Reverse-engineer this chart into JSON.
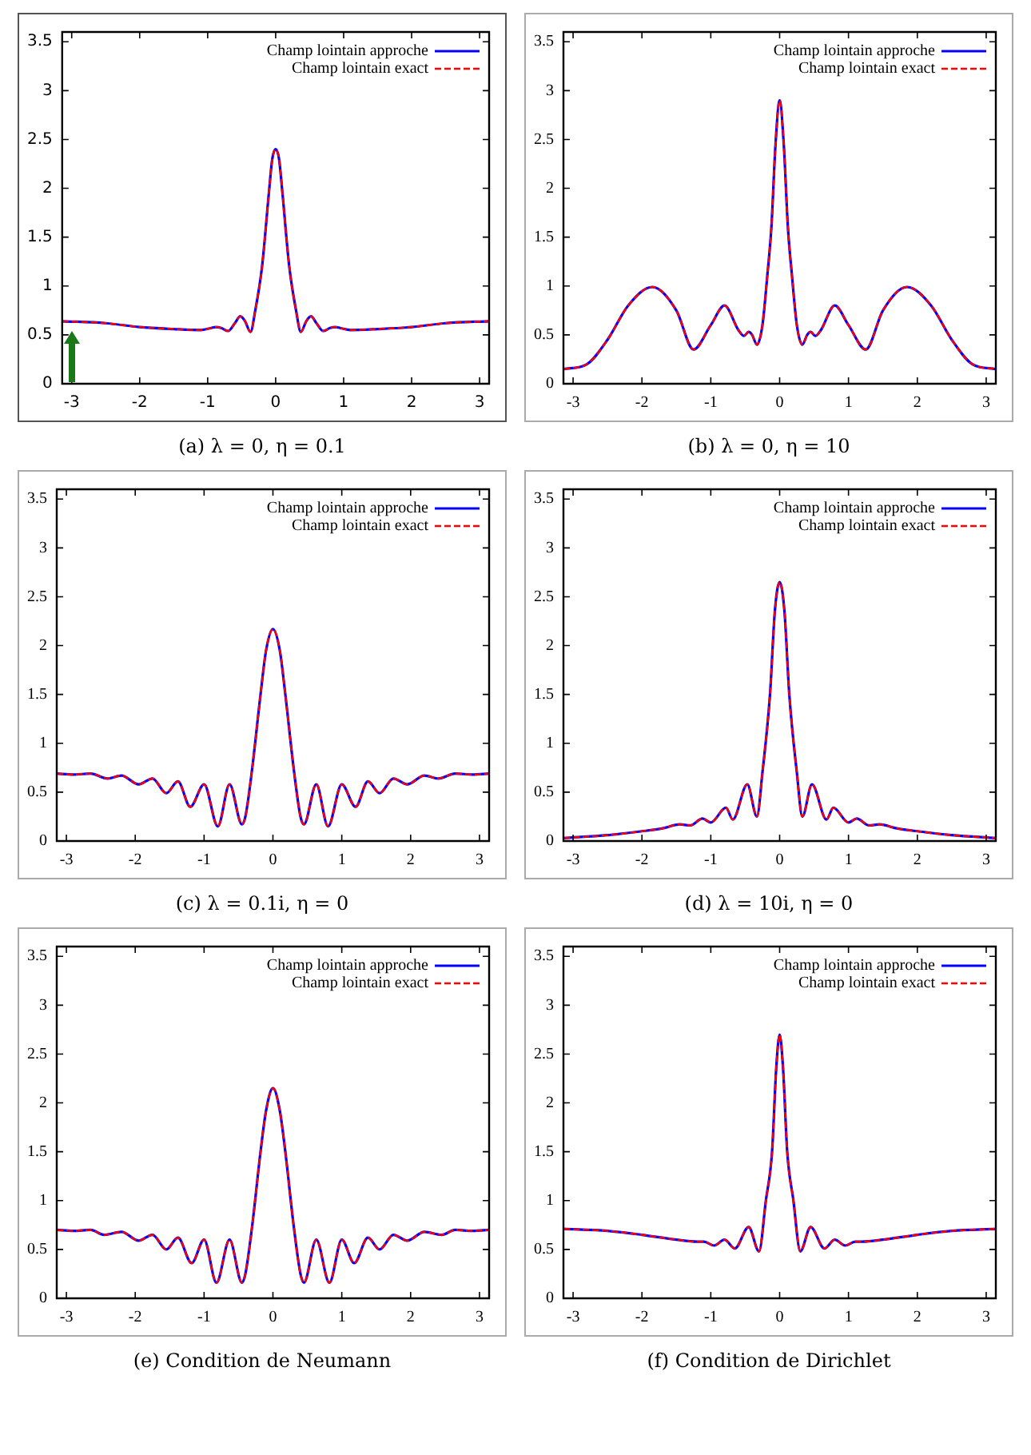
{
  "chart_data": [
    {
      "type": "line",
      "title": "(a) λ = 0, η = 0.1",
      "legend": "top right",
      "marker": "none",
      "xlim": [
        -3.14,
        3.14
      ],
      "ylim": [
        0,
        3.6
      ],
      "xticks": [
        -3,
        -2,
        -1,
        0,
        1,
        2,
        3
      ],
      "yticks": [
        0,
        0.5,
        1,
        1.5,
        2,
        2.5,
        3,
        3.5
      ],
      "x": [
        -3.14,
        -2.5,
        -2,
        -1.5,
        -1.1,
        -0.95,
        -0.88,
        -0.8,
        -0.7,
        -0.6,
        -0.52,
        -0.45,
        -0.37,
        -0.3,
        -0.2,
        -0.1,
        -0.05,
        0,
        0.05,
        0.1,
        0.2,
        0.3,
        0.37,
        0.45,
        0.52,
        0.6,
        0.7,
        0.8,
        0.88,
        0.95,
        1.1,
        1.5,
        2,
        2.5,
        3.14
      ],
      "series": [
        {
          "name": "Champ lointain approche",
          "color": "#0000ff",
          "line_style": "solid",
          "values": [
            0.64,
            0.62,
            0.58,
            0.56,
            0.55,
            0.57,
            0.58,
            0.57,
            0.54,
            0.62,
            0.69,
            0.64,
            0.53,
            0.75,
            1.2,
            1.95,
            2.3,
            2.4,
            2.3,
            1.95,
            1.2,
            0.75,
            0.53,
            0.64,
            0.69,
            0.62,
            0.54,
            0.57,
            0.58,
            0.57,
            0.55,
            0.56,
            0.58,
            0.62,
            0.64
          ]
        },
        {
          "name": "Champ lointain exact",
          "color": "#ff0000",
          "line_style": "dashed",
          "values": [
            0.64,
            0.62,
            0.58,
            0.56,
            0.55,
            0.57,
            0.58,
            0.57,
            0.54,
            0.62,
            0.69,
            0.64,
            0.53,
            0.75,
            1.2,
            1.95,
            2.3,
            2.4,
            2.3,
            1.95,
            1.2,
            0.75,
            0.53,
            0.64,
            0.69,
            0.62,
            0.54,
            0.57,
            0.58,
            0.57,
            0.55,
            0.56,
            0.58,
            0.62,
            0.64
          ]
        }
      ]
    },
    {
      "type": "line",
      "title": "(b) λ = 0, η = 10",
      "legend": "top right",
      "marker": "none",
      "xlim": [
        -3.14,
        3.14
      ],
      "ylim": [
        0,
        3.6
      ],
      "xticks": [
        -3,
        -2,
        -1,
        0,
        1,
        2,
        3
      ],
      "yticks": [
        0,
        0.5,
        1,
        1.5,
        2,
        2.5,
        3,
        3.5
      ],
      "x": [
        -3.14,
        -2.8,
        -2.5,
        -2.2,
        -1.85,
        -1.5,
        -1.25,
        -1,
        -0.8,
        -0.6,
        -0.52,
        -0.45,
        -0.4,
        -0.33,
        -0.25,
        -0.18,
        -0.12,
        -0.06,
        0,
        0.06,
        0.12,
        0.18,
        0.25,
        0.33,
        0.4,
        0.45,
        0.52,
        0.6,
        0.8,
        1,
        1.25,
        1.5,
        1.85,
        2.2,
        2.5,
        2.8,
        3.14
      ],
      "series": [
        {
          "name": "Champ lointain approche",
          "color": "#0000ff",
          "line_style": "solid",
          "values": [
            0.15,
            0.2,
            0.45,
            0.8,
            0.99,
            0.75,
            0.35,
            0.6,
            0.8,
            0.55,
            0.49,
            0.53,
            0.5,
            0.4,
            0.6,
            1.1,
            1.6,
            2.45,
            2.9,
            2.45,
            1.6,
            1.1,
            0.6,
            0.4,
            0.5,
            0.53,
            0.49,
            0.55,
            0.8,
            0.6,
            0.35,
            0.75,
            0.99,
            0.8,
            0.45,
            0.2,
            0.15
          ]
        },
        {
          "name": "Champ lointain exact",
          "color": "#ff0000",
          "line_style": "dashed",
          "values": [
            0.15,
            0.2,
            0.45,
            0.8,
            0.99,
            0.75,
            0.35,
            0.6,
            0.8,
            0.55,
            0.49,
            0.53,
            0.5,
            0.4,
            0.6,
            1.1,
            1.6,
            2.45,
            2.9,
            2.45,
            1.6,
            1.1,
            0.6,
            0.4,
            0.5,
            0.53,
            0.49,
            0.55,
            0.8,
            0.6,
            0.35,
            0.75,
            0.99,
            0.8,
            0.45,
            0.2,
            0.15
          ]
        }
      ]
    },
    {
      "type": "line",
      "title": "(c) λ = 0.1i, η = 0",
      "legend": "top right",
      "marker": "none",
      "xlim": [
        -3.14,
        3.14
      ],
      "ylim": [
        0,
        3.6
      ],
      "xticks": [
        -3,
        -2,
        -1,
        0,
        1,
        2,
        3
      ],
      "yticks": [
        0,
        0.5,
        1,
        1.5,
        2,
        2.5,
        3,
        3.5
      ],
      "x": [
        -3.14,
        -2.9,
        -2.65,
        -2.4,
        -2.2,
        -1.95,
        -1.75,
        -1.55,
        -1.38,
        -1.2,
        -1,
        -0.8,
        -0.63,
        -0.45,
        -0.4,
        -0.3,
        -0.18,
        -0.1,
        0,
        0.1,
        0.18,
        0.3,
        0.4,
        0.45,
        0.63,
        0.8,
        1,
        1.2,
        1.38,
        1.55,
        1.75,
        1.95,
        2.2,
        2.4,
        2.65,
        2.9,
        3.14
      ],
      "series": [
        {
          "name": "Champ lointain approche",
          "color": "#0000ff",
          "line_style": "solid",
          "values": [
            0.69,
            0.68,
            0.69,
            0.64,
            0.67,
            0.58,
            0.64,
            0.49,
            0.61,
            0.35,
            0.58,
            0.15,
            0.58,
            0.17,
            0.25,
            0.75,
            1.5,
            1.95,
            2.17,
            1.95,
            1.5,
            0.75,
            0.25,
            0.17,
            0.58,
            0.15,
            0.58,
            0.35,
            0.61,
            0.49,
            0.64,
            0.58,
            0.67,
            0.64,
            0.69,
            0.68,
            0.69
          ]
        },
        {
          "name": "Champ lointain exact",
          "color": "#ff0000",
          "line_style": "dashed",
          "values": [
            0.69,
            0.68,
            0.69,
            0.64,
            0.67,
            0.58,
            0.64,
            0.49,
            0.61,
            0.35,
            0.58,
            0.15,
            0.58,
            0.17,
            0.25,
            0.75,
            1.5,
            1.95,
            2.17,
            1.95,
            1.5,
            0.75,
            0.25,
            0.17,
            0.58,
            0.15,
            0.58,
            0.35,
            0.61,
            0.49,
            0.64,
            0.58,
            0.67,
            0.64,
            0.69,
            0.68,
            0.69
          ]
        }
      ]
    },
    {
      "type": "line",
      "title": "(d) λ = 10i, η = 0",
      "legend": "top right",
      "marker": "none",
      "xlim": [
        -3.14,
        3.14
      ],
      "ylim": [
        0,
        3.6
      ],
      "xticks": [
        -3,
        -2,
        -1,
        0,
        1,
        2,
        3
      ],
      "yticks": [
        0,
        0.5,
        1,
        1.5,
        2,
        2.5,
        3,
        3.5
      ],
      "x": [
        -3.14,
        -2.5,
        -2,
        -1.7,
        -1.45,
        -1.3,
        -1.12,
        -1,
        -0.78,
        -0.68,
        -0.47,
        -0.33,
        -0.25,
        -0.14,
        -0.07,
        0,
        0.07,
        0.14,
        0.25,
        0.33,
        0.47,
        0.68,
        0.78,
        1,
        1.12,
        1.3,
        1.45,
        1.7,
        2,
        2.5,
        3.14
      ],
      "series": [
        {
          "name": "Champ lointain approche",
          "color": "#0000ff",
          "line_style": "solid",
          "values": [
            0.03,
            0.06,
            0.1,
            0.13,
            0.17,
            0.16,
            0.23,
            0.19,
            0.34,
            0.22,
            0.58,
            0.25,
            0.7,
            1.5,
            2.35,
            2.65,
            2.35,
            1.5,
            0.7,
            0.25,
            0.58,
            0.22,
            0.34,
            0.19,
            0.23,
            0.16,
            0.17,
            0.13,
            0.1,
            0.06,
            0.03
          ]
        },
        {
          "name": "Champ lointain exact",
          "color": "#ff0000",
          "line_style": "dashed",
          "values": [
            0.03,
            0.06,
            0.1,
            0.13,
            0.17,
            0.16,
            0.23,
            0.19,
            0.34,
            0.22,
            0.58,
            0.25,
            0.7,
            1.5,
            2.35,
            2.65,
            2.35,
            1.5,
            0.7,
            0.25,
            0.58,
            0.22,
            0.34,
            0.19,
            0.23,
            0.16,
            0.17,
            0.13,
            0.1,
            0.06,
            0.03
          ]
        }
      ]
    },
    {
      "type": "line",
      "title": "(e) Condition de Neumann",
      "legend": "top right",
      "marker": "none",
      "xlim": [
        -3.14,
        3.14
      ],
      "ylim": [
        0,
        3.6
      ],
      "xticks": [
        -3,
        -2,
        -1,
        0,
        1,
        2,
        3
      ],
      "yticks": [
        0,
        0.5,
        1,
        1.5,
        2,
        2.5,
        3,
        3.5
      ],
      "x": [
        -3.14,
        -2.9,
        -2.65,
        -2.45,
        -2.2,
        -1.95,
        -1.75,
        -1.55,
        -1.38,
        -1.18,
        -1,
        -0.82,
        -0.63,
        -0.45,
        -0.4,
        -0.3,
        -0.18,
        -0.1,
        0,
        0.1,
        0.18,
        0.3,
        0.4,
        0.45,
        0.63,
        0.82,
        1,
        1.18,
        1.38,
        1.55,
        1.75,
        1.95,
        2.2,
        2.45,
        2.65,
        2.9,
        3.14
      ],
      "series": [
        {
          "name": "Champ lointain approche",
          "color": "#0000ff",
          "line_style": "solid",
          "values": [
            0.7,
            0.69,
            0.7,
            0.65,
            0.68,
            0.59,
            0.65,
            0.5,
            0.62,
            0.36,
            0.6,
            0.16,
            0.6,
            0.16,
            0.25,
            0.75,
            1.5,
            1.92,
            2.15,
            1.92,
            1.5,
            0.75,
            0.25,
            0.16,
            0.6,
            0.16,
            0.6,
            0.36,
            0.62,
            0.5,
            0.65,
            0.59,
            0.68,
            0.65,
            0.7,
            0.69,
            0.7
          ]
        },
        {
          "name": "Champ lointain exact",
          "color": "#ff0000",
          "line_style": "dashed",
          "values": [
            0.7,
            0.69,
            0.7,
            0.65,
            0.68,
            0.59,
            0.65,
            0.5,
            0.62,
            0.36,
            0.6,
            0.16,
            0.6,
            0.16,
            0.25,
            0.75,
            1.5,
            1.92,
            2.15,
            1.92,
            1.5,
            0.75,
            0.25,
            0.16,
            0.6,
            0.16,
            0.6,
            0.36,
            0.62,
            0.5,
            0.65,
            0.59,
            0.68,
            0.65,
            0.7,
            0.69,
            0.7
          ]
        }
      ]
    },
    {
      "type": "line",
      "title": "(f) Condition de Dirichlet",
      "legend": "top right",
      "marker": "none",
      "xlim": [
        -3.14,
        3.14
      ],
      "ylim": [
        0,
        3.6
      ],
      "xticks": [
        -3,
        -2,
        -1,
        0,
        1,
        2,
        3
      ],
      "yticks": [
        0,
        0.5,
        1,
        1.5,
        2,
        2.5,
        3,
        3.5
      ],
      "x": [
        -3.14,
        -2.5,
        -2,
        -1.5,
        -1.2,
        -1.1,
        -0.95,
        -0.8,
        -0.65,
        -0.45,
        -0.3,
        -0.2,
        -0.11,
        -0.05,
        0,
        0.05,
        0.11,
        0.2,
        0.3,
        0.45,
        0.65,
        0.8,
        0.95,
        1.1,
        1.2,
        1.5,
        2,
        2.5,
        3.14
      ],
      "series": [
        {
          "name": "Champ lointain approche",
          "color": "#0000ff",
          "line_style": "solid",
          "values": [
            0.71,
            0.69,
            0.65,
            0.6,
            0.58,
            0.58,
            0.54,
            0.6,
            0.51,
            0.73,
            0.48,
            1,
            1.5,
            2.35,
            2.7,
            2.35,
            1.5,
            1,
            0.48,
            0.73,
            0.51,
            0.6,
            0.54,
            0.58,
            0.58,
            0.6,
            0.65,
            0.69,
            0.71
          ]
        },
        {
          "name": "Champ lointain exact",
          "color": "#ff0000",
          "line_style": "dashed",
          "values": [
            0.71,
            0.69,
            0.65,
            0.6,
            0.58,
            0.58,
            0.54,
            0.6,
            0.51,
            0.73,
            0.48,
            1,
            1.5,
            2.35,
            2.7,
            2.35,
            1.5,
            1,
            0.48,
            0.73,
            0.51,
            0.6,
            0.54,
            0.58,
            0.58,
            0.6,
            0.65,
            0.69,
            0.71
          ]
        }
      ]
    }
  ]
}
